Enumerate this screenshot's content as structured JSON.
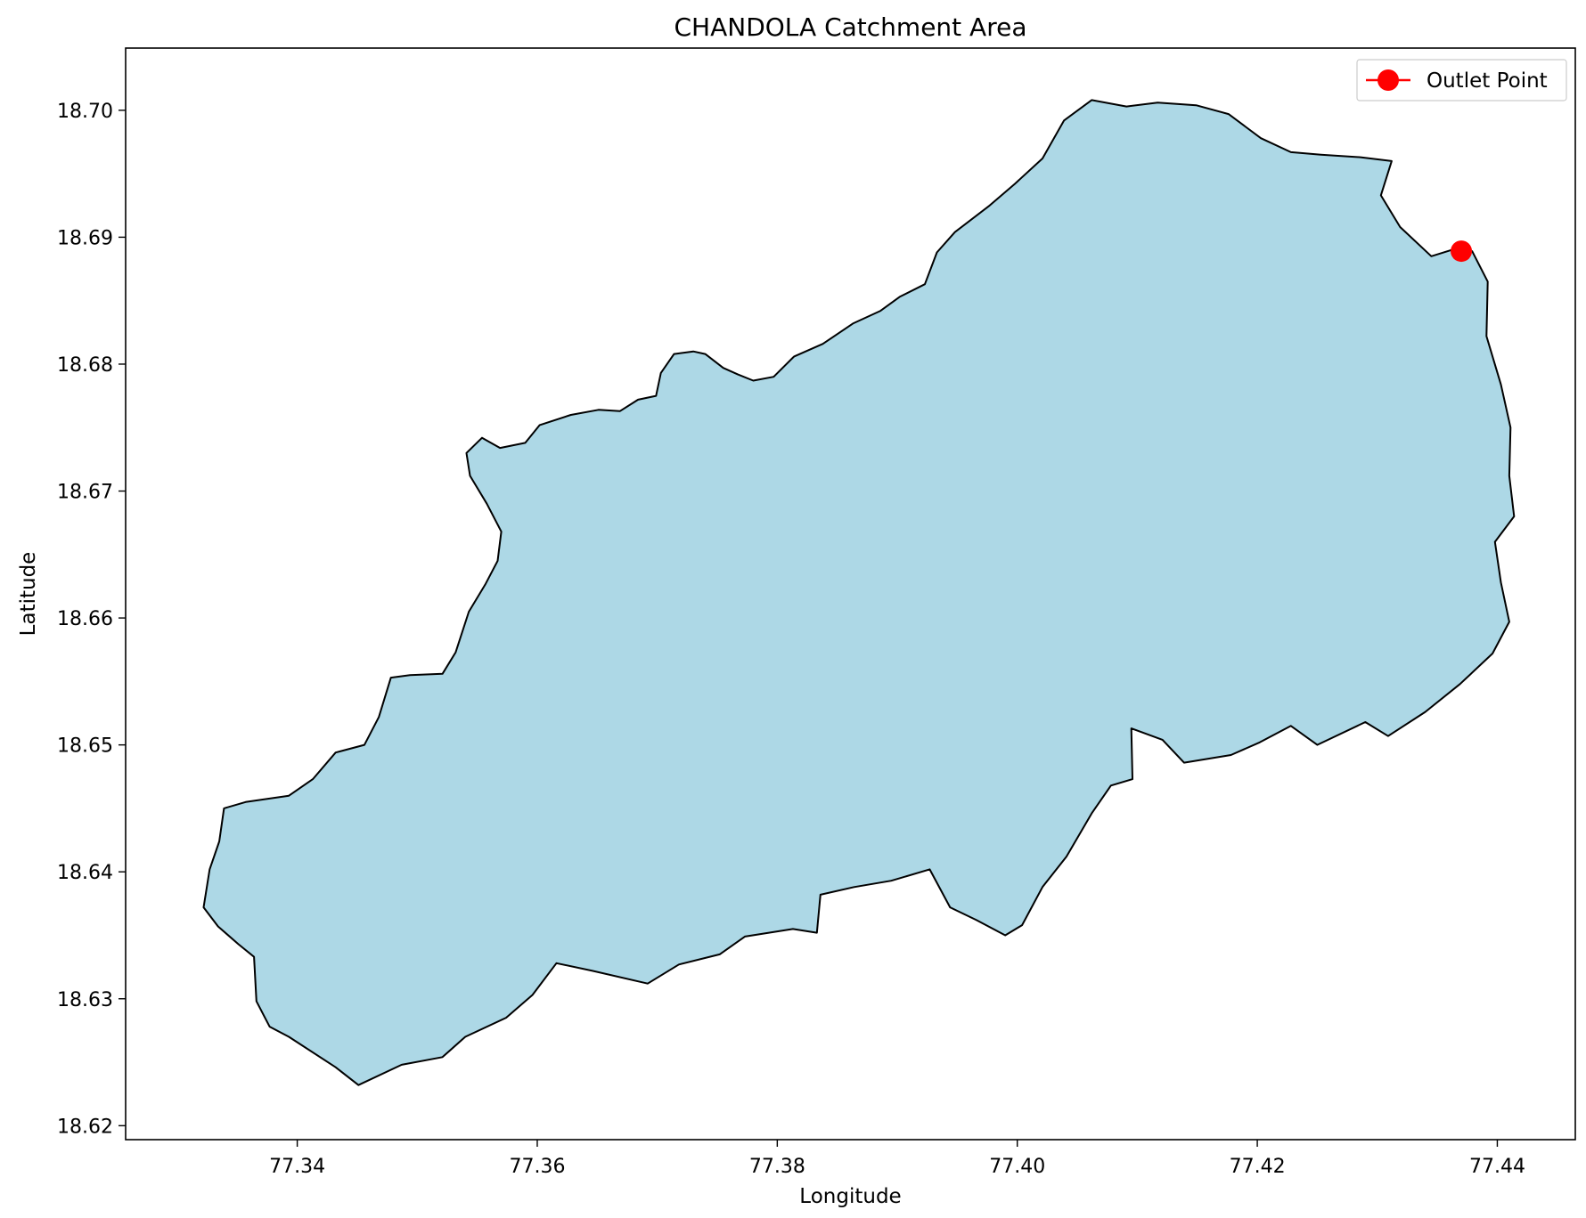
{
  "chart_data": {
    "type": "map",
    "title": "CHANDOLA Catchment Area",
    "xlabel": "Longitude",
    "ylabel": "Latitude",
    "xlim": [
      77.3257,
      77.4465
    ],
    "ylim": [
      18.6189,
      18.7049
    ],
    "x_ticks": [
      77.34,
      77.36,
      77.38,
      77.4,
      77.42,
      77.44
    ],
    "x_tick_labels": [
      "77.34",
      "77.36",
      "77.38",
      "77.40",
      "77.42",
      "77.44"
    ],
    "y_ticks": [
      18.62,
      18.63,
      18.64,
      18.65,
      18.66,
      18.67,
      18.68,
      18.69,
      18.7
    ],
    "y_tick_labels": [
      "18.62",
      "18.63",
      "18.64",
      "18.65",
      "18.66",
      "18.67",
      "18.68",
      "18.69",
      "18.70"
    ],
    "grid": false,
    "legend_position": "top-right",
    "catchment": {
      "fill_color": "#add8e6",
      "edge_color": "#000000",
      "boundary": [
        [
          77.3322,
          18.6372
        ],
        [
          77.3334,
          18.6357
        ],
        [
          77.3351,
          18.6343
        ],
        [
          77.3364,
          18.6333
        ],
        [
          77.3366,
          18.6298
        ],
        [
          77.3377,
          18.6278
        ],
        [
          77.3393,
          18.627
        ],
        [
          77.3432,
          18.6246
        ],
        [
          77.3451,
          18.6232
        ],
        [
          77.3487,
          18.6248
        ],
        [
          77.3521,
          18.6254
        ],
        [
          77.354,
          18.627
        ],
        [
          77.3574,
          18.6285
        ],
        [
          77.3596,
          18.6303
        ],
        [
          77.3616,
          18.6328
        ],
        [
          77.3646,
          18.6322
        ],
        [
          77.3692,
          18.6312
        ],
        [
          77.3718,
          18.6327
        ],
        [
          77.3752,
          18.6335
        ],
        [
          77.3773,
          18.6349
        ],
        [
          77.3813,
          18.6355
        ],
        [
          77.3833,
          18.6352
        ],
        [
          77.3836,
          18.6382
        ],
        [
          77.3864,
          18.6388
        ],
        [
          77.3895,
          18.6393
        ],
        [
          77.3927,
          18.6402
        ],
        [
          77.3944,
          18.6372
        ],
        [
          77.3966,
          18.6362
        ],
        [
          77.399,
          18.635
        ],
        [
          77.4004,
          18.6358
        ],
        [
          77.4021,
          18.6388
        ],
        [
          77.4041,
          18.6412
        ],
        [
          77.4062,
          18.6446
        ],
        [
          77.4078,
          18.6468
        ],
        [
          77.4096,
          18.6473
        ],
        [
          77.4095,
          18.6513
        ],
        [
          77.4121,
          18.6504
        ],
        [
          77.4139,
          18.6486
        ],
        [
          77.4178,
          18.6492
        ],
        [
          77.4202,
          18.6502
        ],
        [
          77.4228,
          18.6515
        ],
        [
          77.425,
          18.65
        ],
        [
          77.429,
          18.6518
        ],
        [
          77.4309,
          18.6507
        ],
        [
          77.434,
          18.6526
        ],
        [
          77.4369,
          18.6548
        ],
        [
          77.4396,
          18.6572
        ],
        [
          77.441,
          18.6597
        ],
        [
          77.4403,
          18.6628
        ],
        [
          77.4398,
          18.666
        ],
        [
          77.4414,
          18.668
        ],
        [
          77.441,
          18.6712
        ],
        [
          77.4411,
          18.675
        ],
        [
          77.4403,
          18.6784
        ],
        [
          77.4391,
          18.6822
        ],
        [
          77.4392,
          18.6865
        ],
        [
          77.4379,
          18.6889
        ],
        [
          77.4362,
          18.689
        ],
        [
          77.4345,
          18.6885
        ],
        [
          77.4319,
          18.6908
        ],
        [
          77.4303,
          18.6933
        ],
        [
          77.4312,
          18.696
        ],
        [
          77.4286,
          18.6963
        ],
        [
          77.4253,
          18.6965
        ],
        [
          77.4228,
          18.6967
        ],
        [
          77.4203,
          18.6978
        ],
        [
          77.4176,
          18.6997
        ],
        [
          77.4149,
          18.7004
        ],
        [
          77.4117,
          18.7006
        ],
        [
          77.4091,
          18.7003
        ],
        [
          77.4062,
          18.7008
        ],
        [
          77.4039,
          18.6992
        ],
        [
          77.4021,
          18.6962
        ],
        [
          77.3998,
          18.6942
        ],
        [
          77.3977,
          18.6925
        ],
        [
          77.3948,
          18.6904
        ],
        [
          77.3933,
          18.6888
        ],
        [
          77.3923,
          18.6863
        ],
        [
          77.3902,
          18.6853
        ],
        [
          77.3886,
          18.6842
        ],
        [
          77.3863,
          18.6832
        ],
        [
          77.3838,
          18.6816
        ],
        [
          77.3814,
          18.6806
        ],
        [
          77.3797,
          18.679
        ],
        [
          77.378,
          18.6787
        ],
        [
          77.3767,
          18.6792
        ],
        [
          77.3755,
          18.6797
        ],
        [
          77.374,
          18.6808
        ],
        [
          77.373,
          18.681
        ],
        [
          77.3714,
          18.6808
        ],
        [
          77.3703,
          18.6793
        ],
        [
          77.3699,
          18.6775
        ],
        [
          77.3684,
          18.6772
        ],
        [
          77.3669,
          18.6763
        ],
        [
          77.3651,
          18.6764
        ],
        [
          77.3628,
          18.676
        ],
        [
          77.3602,
          18.6752
        ],
        [
          77.359,
          18.6738
        ],
        [
          77.3569,
          18.6734
        ],
        [
          77.3554,
          18.6742
        ],
        [
          77.3541,
          18.673
        ],
        [
          77.3544,
          18.6712
        ],
        [
          77.3558,
          18.669
        ],
        [
          77.357,
          18.6668
        ],
        [
          77.3567,
          18.6645
        ],
        [
          77.3557,
          18.6627
        ],
        [
          77.3543,
          18.6605
        ],
        [
          77.3532,
          18.6573
        ],
        [
          77.3521,
          18.6556
        ],
        [
          77.3494,
          18.6555
        ],
        [
          77.3478,
          18.6553
        ],
        [
          77.3468,
          18.6522
        ],
        [
          77.3456,
          18.65
        ],
        [
          77.3432,
          18.6494
        ],
        [
          77.3413,
          18.6473
        ],
        [
          77.3393,
          18.646
        ],
        [
          77.3357,
          18.6455
        ],
        [
          77.3339,
          18.645
        ],
        [
          77.3335,
          18.6424
        ],
        [
          77.3327,
          18.6402
        ],
        [
          77.3322,
          18.6372
        ]
      ]
    },
    "outlet_point": {
      "label": "Outlet Point",
      "lon": 77.437,
      "lat": 18.6889,
      "color": "#ff0000"
    },
    "legend": [
      {
        "label": "Outlet Point",
        "color": "#ff0000",
        "marker": "circle"
      }
    ]
  }
}
